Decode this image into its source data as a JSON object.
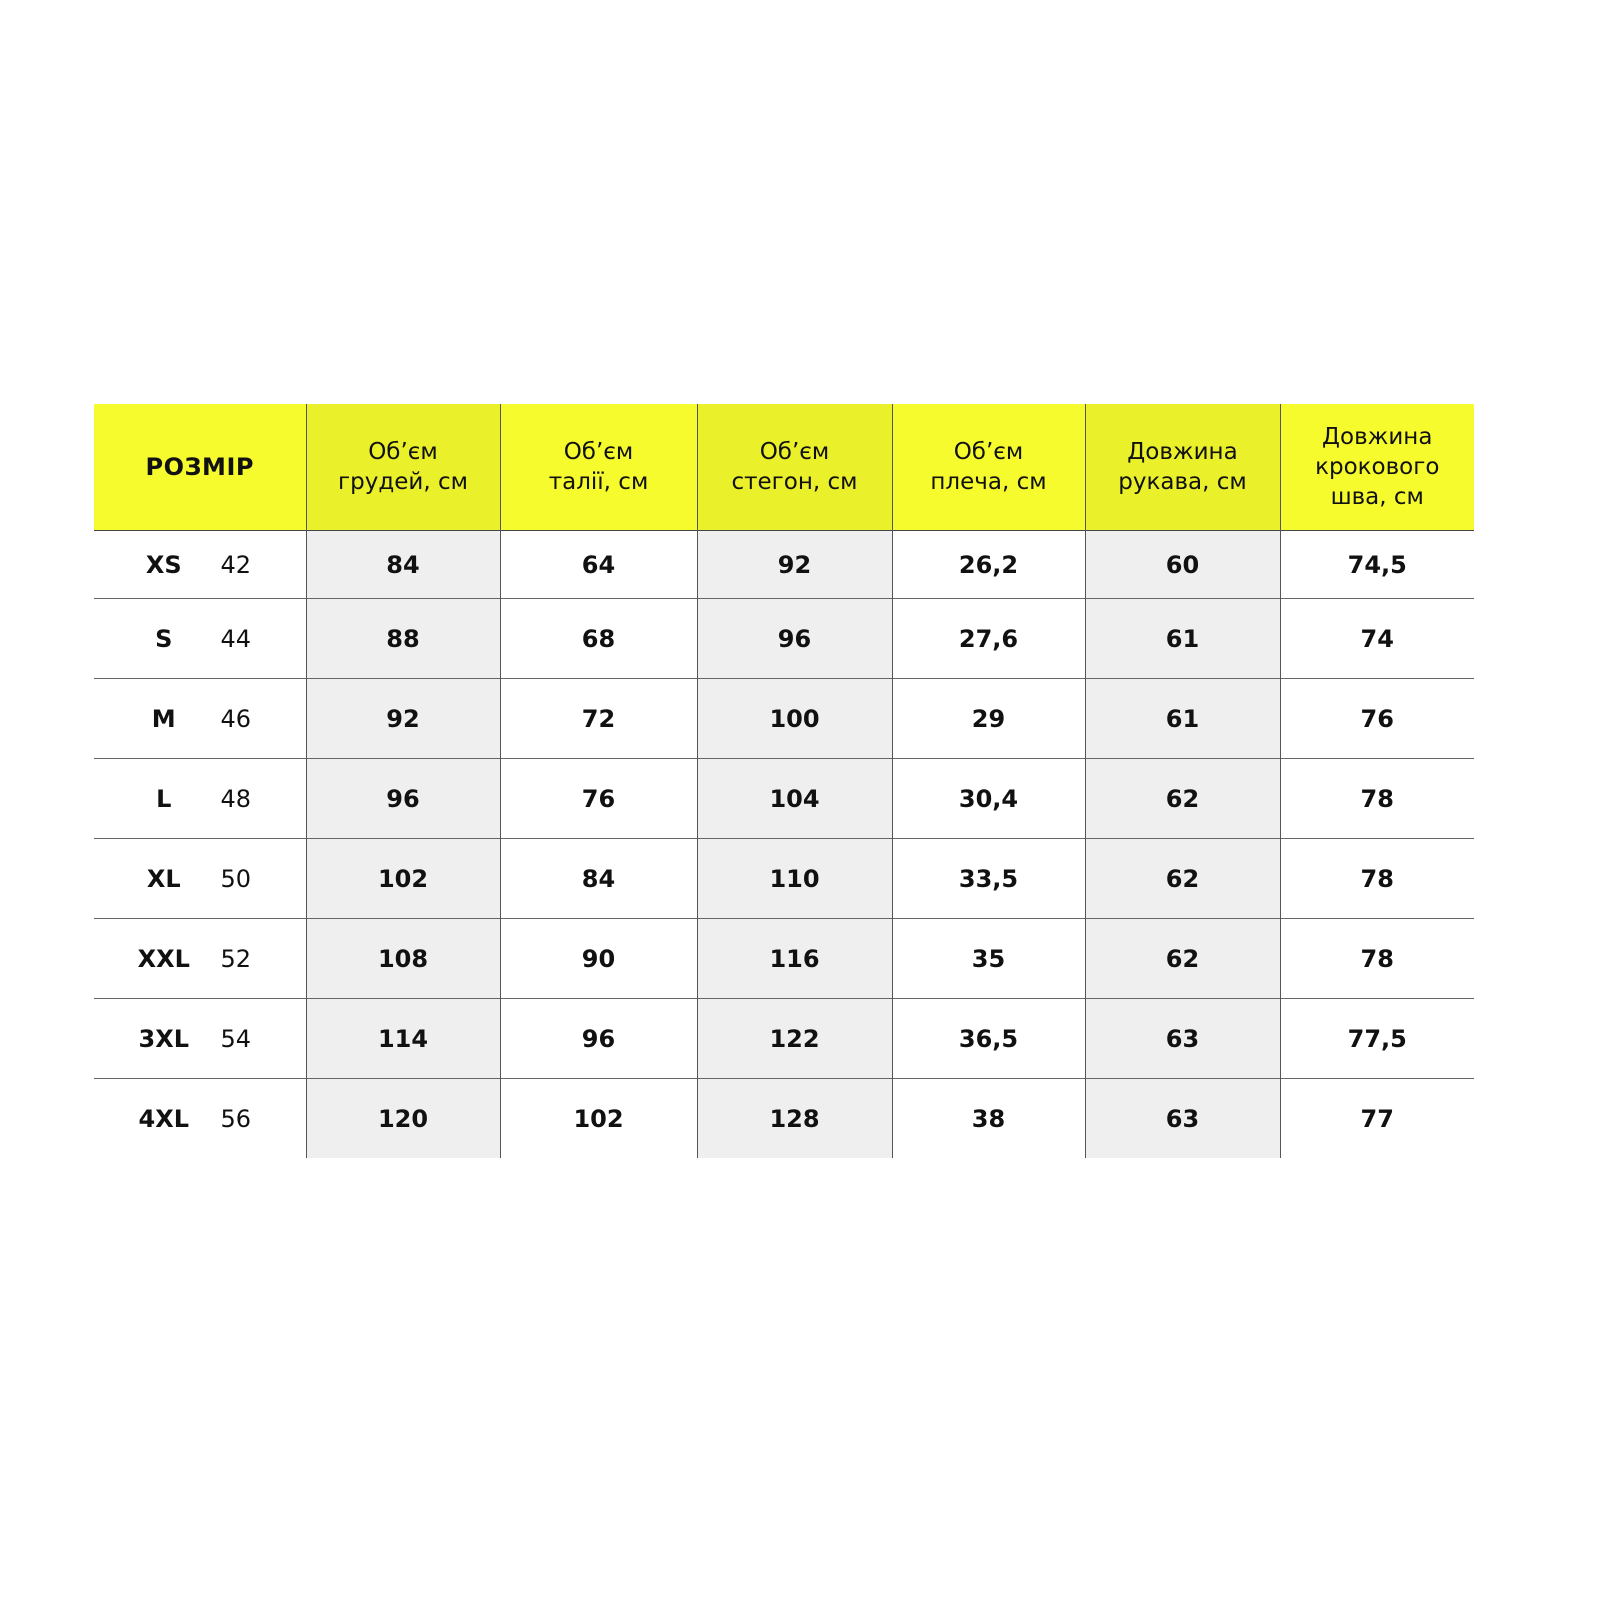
{
  "headers": [
    "РОЗМІР",
    "Об’єм\nгрудей, см",
    "Об’єм\nталії, см",
    "Об’єм\nстегон, см",
    "Об’єм\nплеча, см",
    "Довжина\nрукава, см",
    "Довжина\nкрокового\nшва, см"
  ],
  "colors": {
    "header": "#f6fb2e",
    "header_alt": "#eaf02a",
    "cell_alt": "#efefef"
  },
  "rows": [
    {
      "size": "XS",
      "num": "42",
      "values": [
        "84",
        "64",
        "92",
        "26,2",
        "60",
        "74,5"
      ]
    },
    {
      "size": "S",
      "num": "44",
      "values": [
        "88",
        "68",
        "96",
        "27,6",
        "61",
        "74"
      ]
    },
    {
      "size": "M",
      "num": "46",
      "values": [
        "92",
        "72",
        "100",
        "29",
        "61",
        "76"
      ]
    },
    {
      "size": "L",
      "num": "48",
      "values": [
        "96",
        "76",
        "104",
        "30,4",
        "62",
        "78"
      ]
    },
    {
      "size": "XL",
      "num": "50",
      "values": [
        "102",
        "84",
        "110",
        "33,5",
        "62",
        "78"
      ]
    },
    {
      "size": "XXL",
      "num": "52",
      "values": [
        "108",
        "90",
        "116",
        "35",
        "62",
        "78"
      ]
    },
    {
      "size": "3XL",
      "num": "54",
      "values": [
        "114",
        "96",
        "122",
        "36,5",
        "63",
        "77,5"
      ]
    },
    {
      "size": "4XL",
      "num": "56",
      "values": [
        "120",
        "102",
        "128",
        "38",
        "63",
        "77"
      ]
    }
  ]
}
